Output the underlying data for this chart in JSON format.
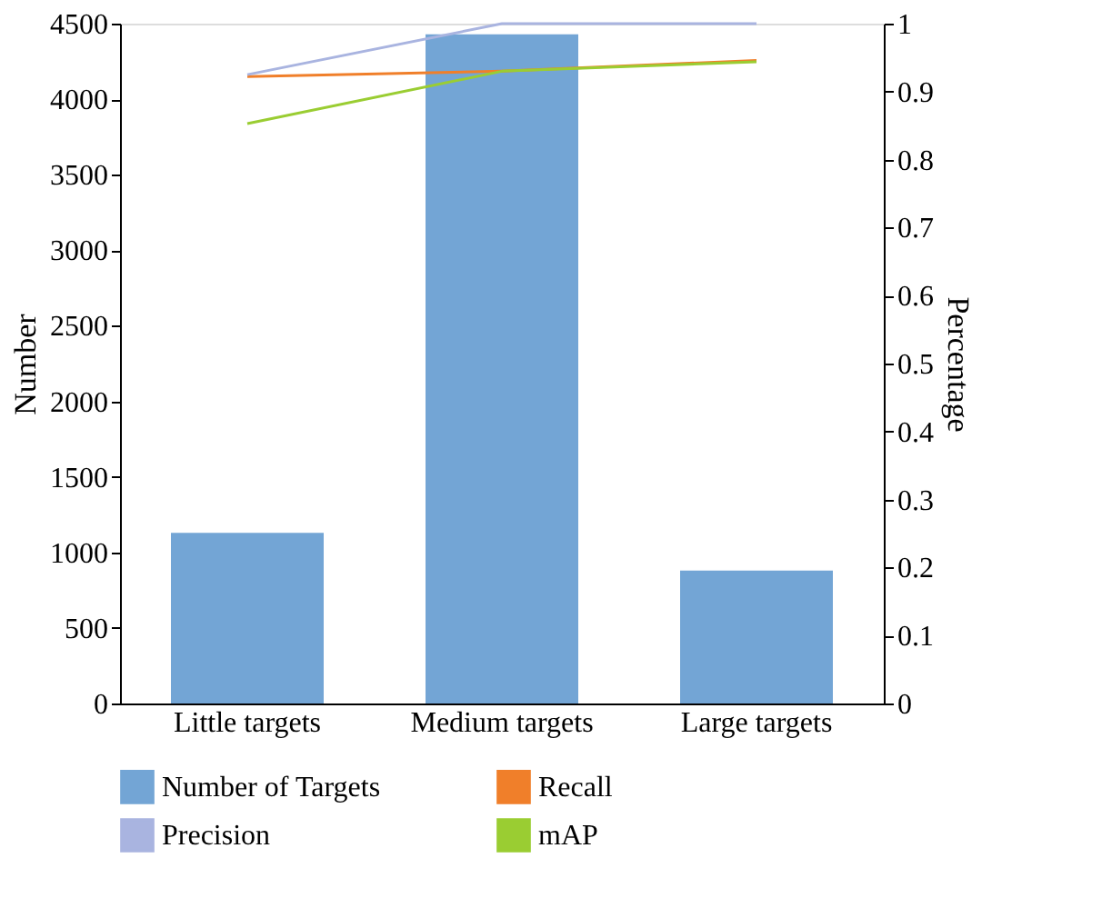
{
  "chart_data": {
    "type": "bar",
    "xlabel": null,
    "ylabel": "Number",
    "y2label": "Percentage",
    "categories": [
      "Little targets",
      "Medium targets",
      "Large targets"
    ],
    "series": [
      {
        "name": "Number of Targets",
        "color": "#73a5d5",
        "values": [
          1130,
          4430,
          880
        ]
      },
      {
        "name": "Recall",
        "type": "line",
        "axis": "y2",
        "color": "#f07f2a",
        "values": [
          0.922,
          0.93,
          0.946
        ]
      },
      {
        "name": "Precision",
        "type": "line",
        "axis": "y2",
        "color": "#a9b4e0",
        "values": [
          0.925,
          1.0,
          1.0
        ]
      },
      {
        "name": "mAP",
        "type": "line",
        "axis": "y2",
        "color": "#9acd32",
        "values": [
          0.853,
          0.93,
          0.944
        ]
      }
    ],
    "ylim": [
      0,
      4500
    ],
    "yticks": [
      0,
      500,
      1000,
      1500,
      2000,
      2500,
      3000,
      3500,
      4000,
      4500
    ],
    "y2lim": [
      0,
      1
    ],
    "y2ticks": [
      0,
      0.1,
      0.2,
      0.3,
      0.4,
      0.5,
      0.6,
      0.7,
      0.8,
      0.9,
      1
    ],
    "grid": false,
    "legend": "bottom"
  }
}
